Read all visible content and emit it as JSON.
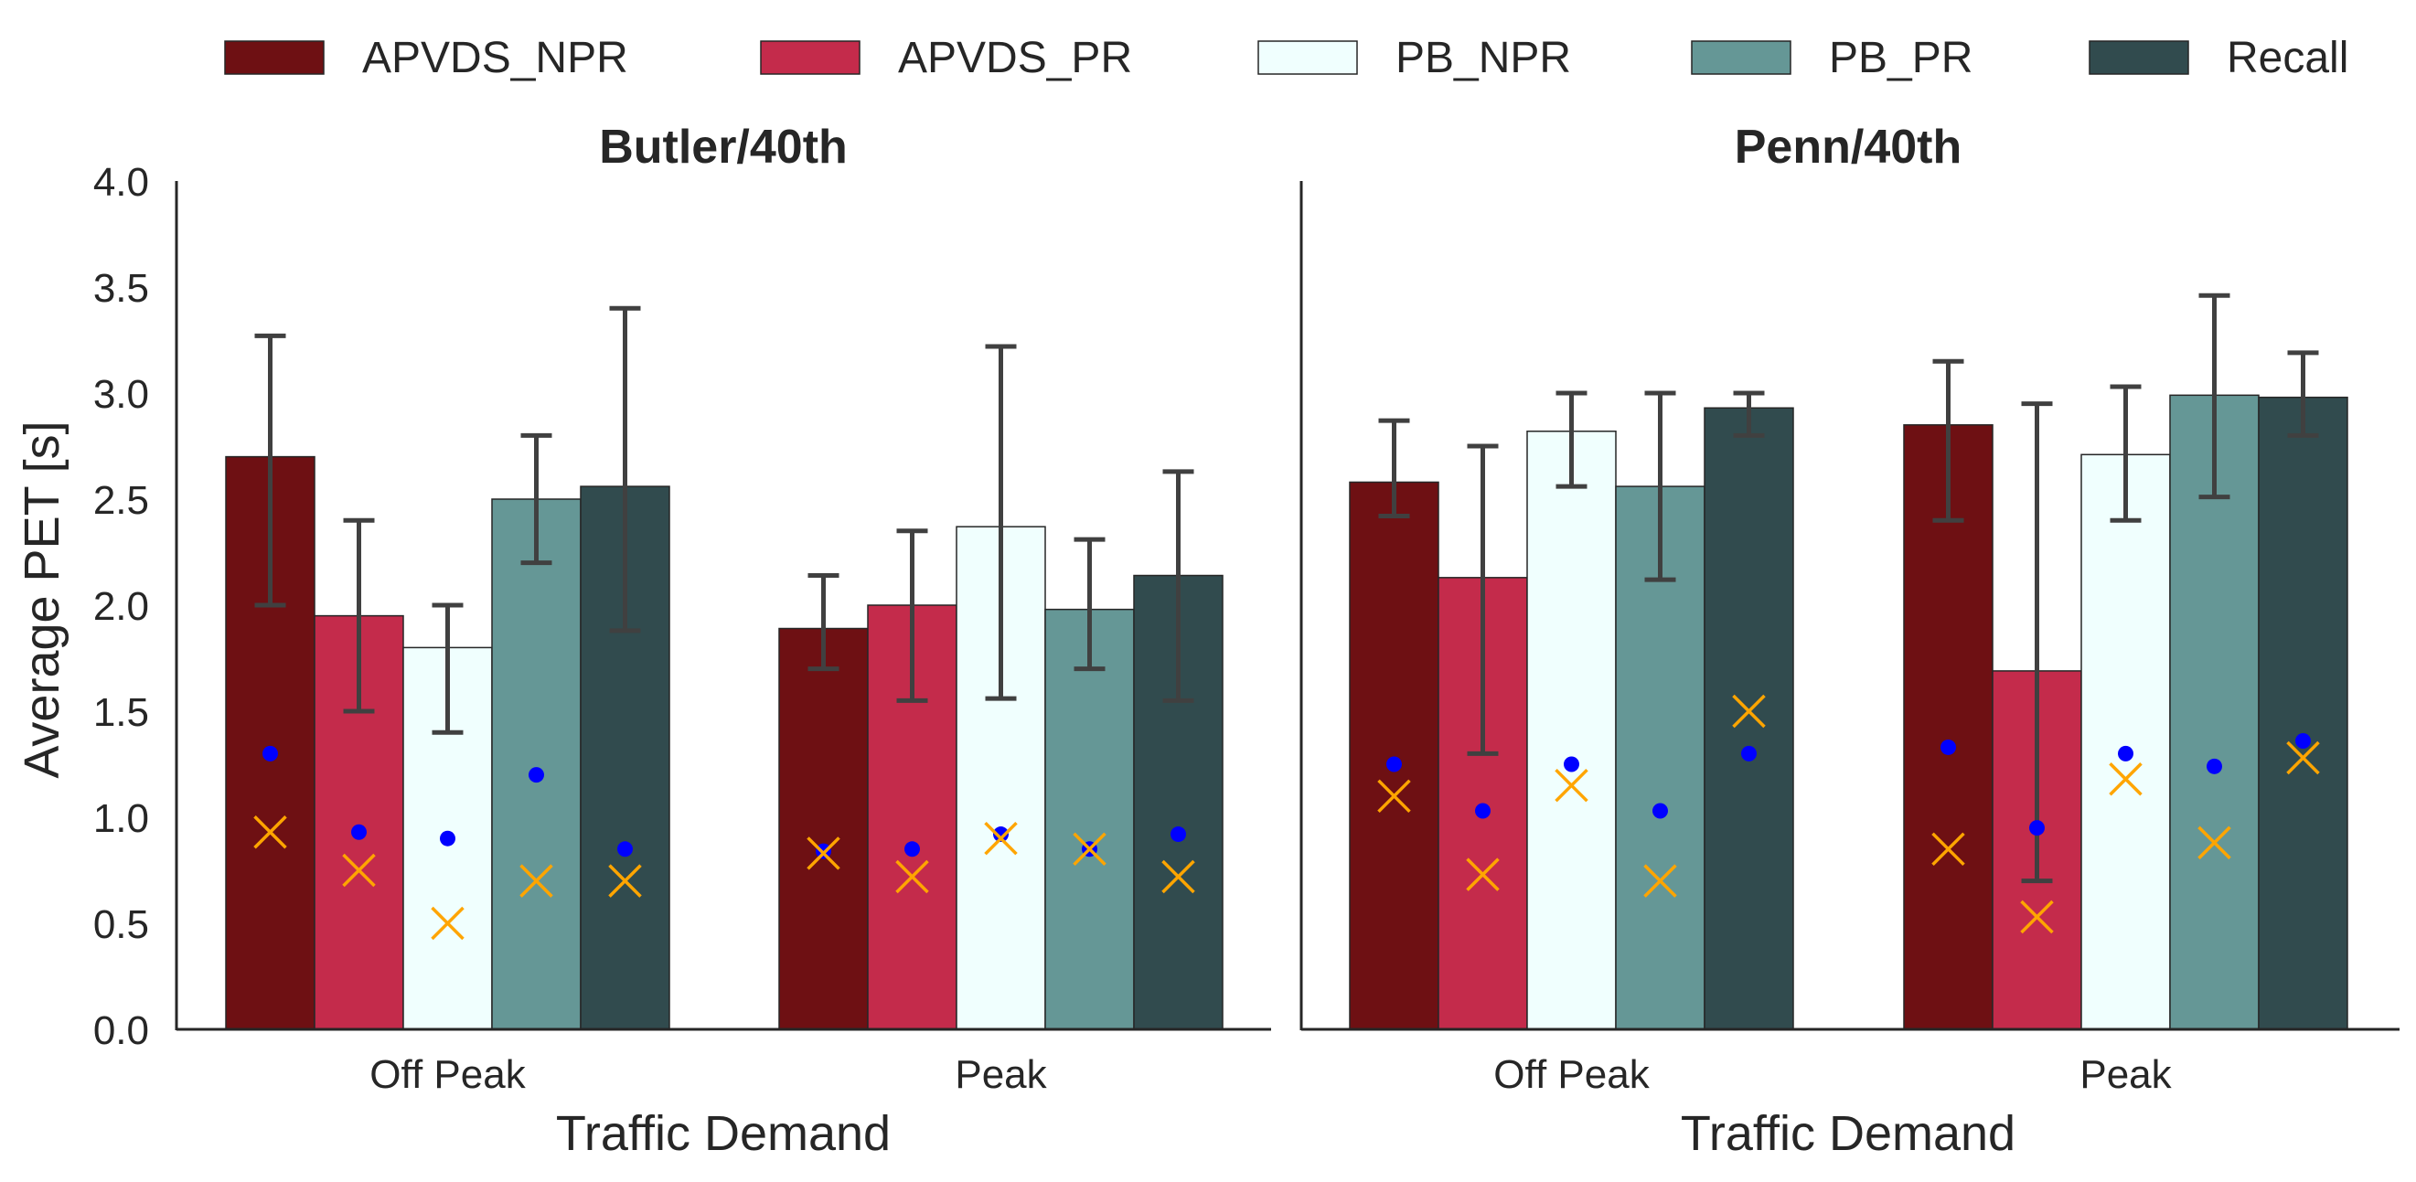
{
  "chart_data": {
    "type": "bar",
    "legend": {
      "placement": "top",
      "entries": [
        "APVDS_NPR",
        "APVDS_PR",
        "PB_NPR",
        "PB_PR",
        "Recall"
      ]
    },
    "series_colors": {
      "APVDS_NPR": "#6e1013",
      "APVDS_PR": "#c42b4b",
      "PB_NPR": "#f0fffe",
      "PB_PR": "#659796",
      "Recall": "#314b4e"
    },
    "marker_colors": {
      "dot": "#0000ff",
      "cross": "#ffa500"
    },
    "ylabel": "Average PET [s]",
    "ylim": [
      0,
      4
    ],
    "yticks": [
      "0.0",
      "0.5",
      "1.0",
      "1.5",
      "2.0",
      "2.5",
      "3.0",
      "3.5",
      "4.0"
    ],
    "grid": false,
    "panels": [
      {
        "title": "Butler/40th",
        "xlabel": "Traffic Demand",
        "categories": [
          "Off Peak",
          "Peak"
        ],
        "series": [
          {
            "name": "APVDS_NPR",
            "values": [
              2.7,
              1.89
            ],
            "err_low": [
              2.0,
              1.7
            ],
            "err_high": [
              3.27,
              2.14
            ],
            "dot": [
              1.3,
              0.84
            ],
            "cross": [
              0.93,
              0.83
            ]
          },
          {
            "name": "APVDS_PR",
            "values": [
              1.95,
              2.0
            ],
            "err_low": [
              1.5,
              1.55
            ],
            "err_high": [
              2.4,
              2.35
            ],
            "dot": [
              0.93,
              0.85
            ],
            "cross": [
              0.75,
              0.72
            ]
          },
          {
            "name": "PB_NPR",
            "values": [
              1.8,
              2.37
            ],
            "err_low": [
              1.4,
              1.56
            ],
            "err_high": [
              2.0,
              3.22
            ],
            "dot": [
              0.9,
              0.92
            ],
            "cross": [
              0.5,
              0.9
            ]
          },
          {
            "name": "PB_PR",
            "values": [
              2.5,
              1.98
            ],
            "err_low": [
              2.2,
              1.7
            ],
            "err_high": [
              2.8,
              2.31
            ],
            "dot": [
              1.2,
              0.85
            ],
            "cross": [
              0.7,
              0.85
            ]
          },
          {
            "name": "Recall",
            "values": [
              2.56,
              2.14
            ],
            "err_low": [
              1.88,
              1.55
            ],
            "err_high": [
              3.4,
              2.63
            ],
            "dot": [
              0.85,
              0.92
            ],
            "cross": [
              0.7,
              0.72
            ]
          }
        ]
      },
      {
        "title": "Penn/40th",
        "xlabel": "Traffic Demand",
        "categories": [
          "Off Peak",
          "Peak"
        ],
        "series": [
          {
            "name": "APVDS_NPR",
            "values": [
              2.58,
              2.85
            ],
            "err_low": [
              2.42,
              2.4
            ],
            "err_high": [
              2.87,
              3.15
            ],
            "dot": [
              1.25,
              1.33
            ],
            "cross": [
              1.1,
              0.85
            ]
          },
          {
            "name": "APVDS_PR",
            "values": [
              2.13,
              1.69
            ],
            "err_low": [
              1.3,
              0.7
            ],
            "err_high": [
              2.75,
              2.95
            ],
            "dot": [
              1.03,
              0.95
            ],
            "cross": [
              0.73,
              0.53
            ]
          },
          {
            "name": "PB_NPR",
            "values": [
              2.82,
              2.71
            ],
            "err_low": [
              2.56,
              2.4
            ],
            "err_high": [
              3.0,
              3.03
            ],
            "dot": [
              1.25,
              1.3
            ],
            "cross": [
              1.15,
              1.18
            ]
          },
          {
            "name": "PB_PR",
            "values": [
              2.56,
              2.99
            ],
            "err_low": [
              2.12,
              2.51
            ],
            "err_high": [
              3.0,
              3.46
            ],
            "dot": [
              1.03,
              1.24
            ],
            "cross": [
              0.7,
              0.88
            ]
          },
          {
            "name": "Recall",
            "values": [
              2.93,
              2.98
            ],
            "err_low": [
              2.8,
              2.8
            ],
            "err_high": [
              3.0,
              3.19
            ],
            "dot": [
              1.3,
              1.36
            ],
            "cross": [
              1.5,
              1.28
            ]
          }
        ]
      }
    ]
  }
}
